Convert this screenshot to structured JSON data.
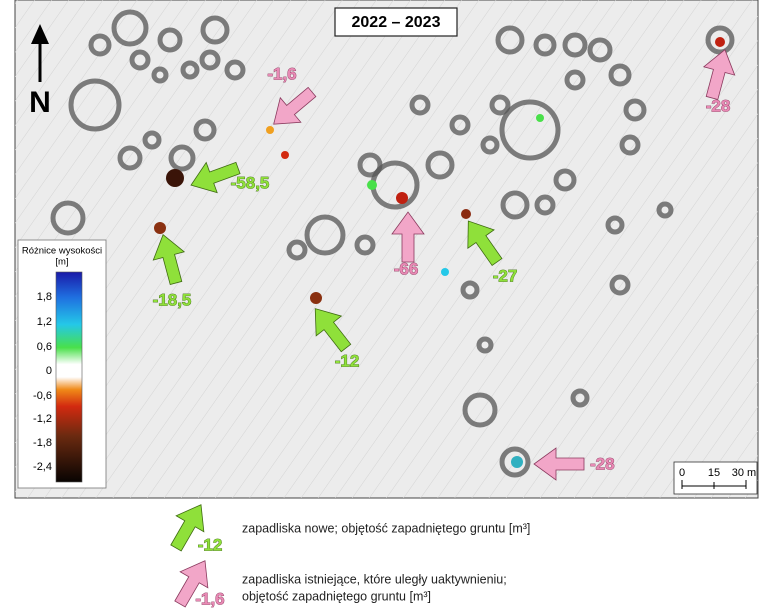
{
  "header": {
    "title": "2022 – 2023",
    "north": "N"
  },
  "legend": {
    "title": "Różnice wysokości",
    "unit": "[m]",
    "ticks": [
      "1,8",
      "1,2",
      "0,6",
      "0",
      "-0,6",
      "-1,2",
      "-1,8",
      "-2,4"
    ]
  },
  "annotations": [
    {
      "label": "-1,6"
    },
    {
      "label": "-58,5"
    },
    {
      "label": "-18,5"
    },
    {
      "label": "-66"
    },
    {
      "label": "-27"
    },
    {
      "label": "-12"
    },
    {
      "label": "-28"
    },
    {
      "label": "-28"
    }
  ],
  "scale": {
    "labels": [
      "0",
      "15",
      "30 m"
    ]
  },
  "key": [
    {
      "label": "-12",
      "text": [
        "zapadliska nowe; objętość zapadniętego gruntu [m³]"
      ]
    },
    {
      "label": "-1,6",
      "text": [
        "zapadliska istniejące, które uległy uaktywnieniu;",
        "objętość zapadniętego gruntu [m³]"
      ]
    }
  ]
}
